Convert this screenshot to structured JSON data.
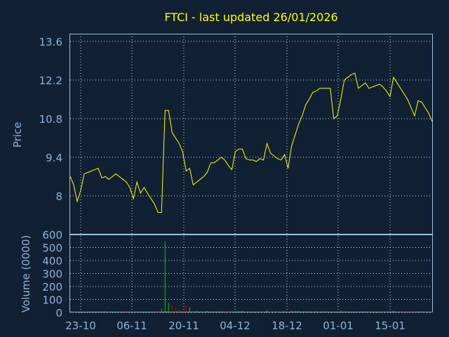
{
  "chart_data": {
    "title": "FTCI - last updated 26/01/2026",
    "price_panel": {
      "type": "line",
      "ylabel": "Price",
      "yticks": [
        "13.6",
        "12.2",
        "10.8",
        "9.4",
        "8"
      ],
      "ylim": [
        6.6,
        13.6
      ],
      "grid": true,
      "series": [
        {
          "color": "#ffff00",
          "values": [
            8.7,
            8.4,
            7.8,
            8.2,
            8.8,
            8.85,
            8.9,
            8.95,
            9.0,
            8.65,
            8.7,
            8.6,
            8.7,
            8.8,
            8.7,
            8.6,
            8.5,
            8.3,
            7.9,
            8.5,
            8.1,
            8.3,
            8.1,
            7.9,
            7.7,
            7.4,
            7.4,
            11.1,
            11.1,
            10.3,
            10.1,
            9.9,
            9.6,
            8.9,
            9.0,
            8.4,
            8.5,
            8.6,
            8.7,
            8.85,
            9.2,
            9.2,
            9.3,
            9.4,
            9.3,
            9.1,
            8.95,
            9.6,
            9.7,
            9.7,
            9.35,
            9.3,
            9.3,
            9.25,
            9.35,
            9.3,
            9.9,
            9.55,
            9.45,
            9.35,
            9.3,
            9.5,
            9.0,
            9.8,
            10.2,
            10.6,
            10.9,
            11.3,
            11.5,
            11.75,
            11.8,
            11.9,
            11.9,
            11.9,
            11.9,
            10.8,
            10.9,
            11.5,
            12.2,
            12.3,
            12.4,
            12.45,
            11.9,
            12.0,
            12.1,
            11.9,
            11.95,
            12.0,
            12.05,
            11.95,
            11.8,
            11.6,
            12.3,
            12.1,
            11.9,
            11.7,
            11.5,
            11.2,
            10.9,
            11.45,
            11.4,
            11.2,
            11.0,
            10.7
          ]
        }
      ]
    },
    "volume_panel": {
      "type": "bar",
      "ylabel": "Volume (0000)",
      "yticks": [
        "600",
        "500",
        "400",
        "300",
        "200",
        "100",
        "0"
      ],
      "ylim": [
        0,
        600
      ],
      "grid": true,
      "up_color": "#00cc00",
      "down_color": "#cc0000",
      "values": [
        6,
        12,
        4,
        5,
        3,
        2,
        4,
        3,
        2,
        3,
        8,
        6,
        4,
        2,
        3,
        3,
        4,
        3,
        5,
        2,
        4,
        3,
        2,
        3,
        4,
        7,
        30,
        550,
        75,
        60,
        35,
        25,
        15,
        50,
        40,
        15,
        12,
        8,
        6,
        12,
        4,
        6,
        8,
        5,
        4,
        6,
        15,
        8,
        10,
        10,
        4,
        3,
        5,
        2,
        6,
        12,
        18,
        8,
        5,
        6,
        4,
        8,
        4,
        15,
        12,
        10,
        6,
        8,
        10,
        6,
        8,
        4,
        6,
        8,
        5,
        4,
        6,
        10,
        8,
        6,
        4,
        3,
        8,
        5,
        6,
        8,
        4,
        3,
        5,
        6,
        8,
        10,
        12,
        6,
        5,
        4,
        8,
        6,
        5,
        6,
        8,
        5,
        4,
        6
      ]
    },
    "xticks": [
      "23-10",
      "06-11",
      "20-11",
      "04-12",
      "18-12",
      "01-01",
      "15-01"
    ]
  }
}
